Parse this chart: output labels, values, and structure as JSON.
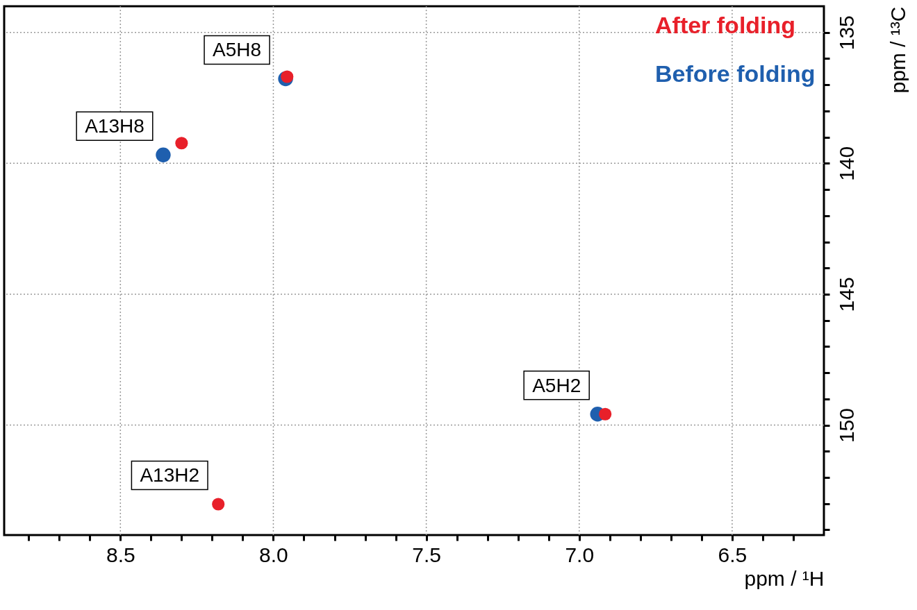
{
  "chart_data": {
    "type": "scatter",
    "xlabel": "ppm / ¹H",
    "ylabel": "ppm / ¹³C",
    "xlim": [
      8.88,
      6.2
    ],
    "ylim": [
      154.2,
      134
    ],
    "xticks": [
      {
        "value": 8.8,
        "label": null
      },
      {
        "value": 8.7,
        "label": null
      },
      {
        "value": 8.6,
        "label": null
      },
      {
        "value": 8.5,
        "label": "8.5"
      },
      {
        "value": 8.4,
        "label": null
      },
      {
        "value": 8.3,
        "label": null
      },
      {
        "value": 8.2,
        "label": null
      },
      {
        "value": 8.1,
        "label": null
      },
      {
        "value": 8.0,
        "label": "8.0"
      },
      {
        "value": 7.9,
        "label": null
      },
      {
        "value": 7.8,
        "label": null
      },
      {
        "value": 7.7,
        "label": null
      },
      {
        "value": 7.6,
        "label": null
      },
      {
        "value": 7.5,
        "label": "7.5"
      },
      {
        "value": 7.4,
        "label": null
      },
      {
        "value": 7.3,
        "label": null
      },
      {
        "value": 7.2,
        "label": null
      },
      {
        "value": 7.1,
        "label": null
      },
      {
        "value": 7.0,
        "label": "7.0"
      },
      {
        "value": 6.9,
        "label": null
      },
      {
        "value": 6.8,
        "label": null
      },
      {
        "value": 6.7,
        "label": null
      },
      {
        "value": 6.6,
        "label": null
      },
      {
        "value": 6.5,
        "label": "6.5"
      },
      {
        "value": 6.4,
        "label": null
      },
      {
        "value": 6.3,
        "label": null
      }
    ],
    "yticks": [
      135,
      {
        "value": 136,
        "label": null
      },
      {
        "value": 137,
        "label": null
      },
      {
        "value": 138,
        "label": null
      },
      {
        "value": 139,
        "label": null
      },
      140,
      {
        "value": 141,
        "label": null
      },
      {
        "value": 142,
        "label": null
      },
      {
        "value": 143,
        "label": null
      },
      {
        "value": 144,
        "label": null
      },
      145,
      {
        "value": 146,
        "label": null
      },
      {
        "value": 147,
        "label": null
      },
      {
        "value": 148,
        "label": null
      },
      {
        "value": 149,
        "label": null
      },
      150,
      {
        "value": 151,
        "label": null
      },
      {
        "value": 152,
        "label": null
      },
      {
        "value": 153,
        "label": null
      },
      {
        "value": 154,
        "label": null
      }
    ],
    "grid": true,
    "legend": "top right",
    "marker": "circle",
    "series": [
      {
        "name": "After folding",
        "color": "#e8202a",
        "x": [
          7.955,
          8.3,
          6.915,
          8.18
        ],
        "values": [
          136.69,
          139.23,
          149.58,
          153.02
        ]
      },
      {
        "name": "Before folding",
        "color": "#1f5fae",
        "x": [
          7.96,
          8.36,
          6.94,
          null
        ],
        "values": [
          136.77,
          139.68,
          149.58,
          null
        ]
      }
    ],
    "annotations": [
      {
        "text": "A5H8",
        "x": 7.96,
        "y": 136.77
      },
      {
        "text": "A13H8",
        "x": 8.36,
        "y": 139.68
      },
      {
        "text": "A5H2",
        "x": 6.915,
        "y": 149.58
      },
      {
        "text": "A13H2",
        "x": 8.18,
        "y": 153.02
      }
    ]
  }
}
